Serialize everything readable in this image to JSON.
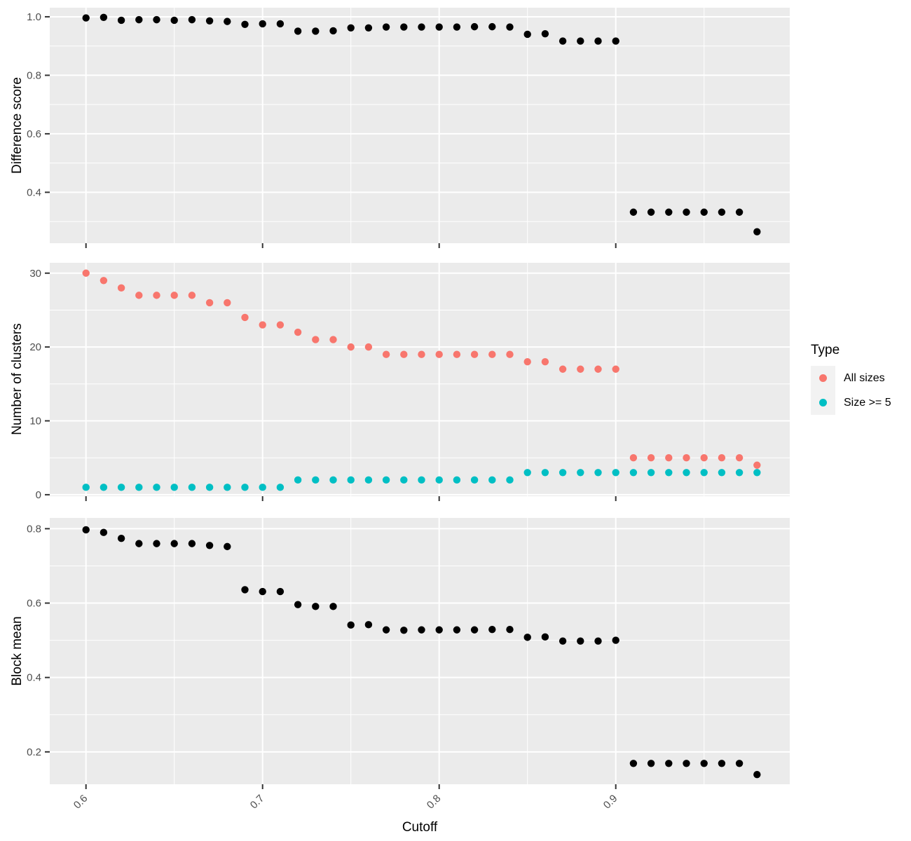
{
  "figure": {
    "xlabel": "Cutoff",
    "x_tick_values": [
      0.6,
      0.7,
      0.8,
      0.9
    ],
    "x_tick_labels": [
      "0.6",
      "0.7",
      "0.8",
      "0.9"
    ]
  },
  "colors": {
    "panel_bg": "#EBEBEB",
    "grid": "#FFFFFF",
    "axis_text": "#4D4D4D",
    "axis_title": "#000000",
    "tick_mark": "#333333",
    "point_black": "#000000",
    "all_sizes": "#F8766D",
    "size_ge_5": "#00BFC4",
    "legend_key_bg": "#F2F2F2"
  },
  "legend": {
    "title": "Type",
    "items": [
      {
        "label": "All sizes",
        "color": "#F8766D"
      },
      {
        "label": "Size >= 5",
        "color": "#00BFC4"
      }
    ]
  },
  "chart_data": [
    {
      "type": "scatter",
      "ylabel": "Difference score",
      "x": [
        0.6,
        0.61,
        0.62,
        0.63,
        0.64,
        0.65,
        0.66,
        0.67,
        0.68,
        0.69,
        0.7,
        0.71,
        0.72,
        0.73,
        0.74,
        0.75,
        0.76,
        0.77,
        0.78,
        0.79,
        0.8,
        0.81,
        0.82,
        0.83,
        0.84,
        0.85,
        0.86,
        0.87,
        0.88,
        0.89,
        0.9,
        0.91,
        0.92,
        0.93,
        0.94,
        0.95,
        0.96,
        0.97,
        0.98
      ],
      "series": [
        {
          "name": "Difference score",
          "color": "#000000",
          "values": [
            0.996,
            0.998,
            0.988,
            0.99,
            0.99,
            0.988,
            0.99,
            0.986,
            0.984,
            0.974,
            0.976,
            0.976,
            0.951,
            0.951,
            0.952,
            0.962,
            0.962,
            0.965,
            0.965,
            0.965,
            0.965,
            0.965,
            0.966,
            0.966,
            0.965,
            0.94,
            0.942,
            0.917,
            0.917,
            0.917,
            0.917,
            0.332,
            0.332,
            0.332,
            0.332,
            0.332,
            0.332,
            0.332,
            0.265
          ]
        }
      ],
      "ylim": [
        0.226,
        1.031
      ],
      "yticks": [
        0.4,
        0.6,
        0.8,
        1.0
      ],
      "ytick_labels": [
        "0.4",
        "0.6",
        "0.8",
        "1.0"
      ],
      "yminor": [
        0.3,
        0.5,
        0.7,
        0.9
      ],
      "grid": true,
      "legend_position": "none"
    },
    {
      "type": "scatter",
      "ylabel": "Number of clusters",
      "x": [
        0.6,
        0.61,
        0.62,
        0.63,
        0.64,
        0.65,
        0.66,
        0.67,
        0.68,
        0.69,
        0.7,
        0.71,
        0.72,
        0.73,
        0.74,
        0.75,
        0.76,
        0.77,
        0.78,
        0.79,
        0.8,
        0.81,
        0.82,
        0.83,
        0.84,
        0.85,
        0.86,
        0.87,
        0.88,
        0.89,
        0.9,
        0.91,
        0.92,
        0.93,
        0.94,
        0.95,
        0.96,
        0.97,
        0.98
      ],
      "series": [
        {
          "name": "All sizes",
          "color": "#F8766D",
          "values": [
            30,
            29,
            28,
            27,
            27,
            27,
            27,
            26,
            26,
            24,
            23,
            23,
            22,
            21,
            21,
            20,
            20,
            19,
            19,
            19,
            19,
            19,
            19,
            19,
            19,
            18,
            18,
            17,
            17,
            17,
            17,
            5,
            5,
            5,
            5,
            5,
            5,
            5,
            4
          ]
        },
        {
          "name": "Size >= 5",
          "color": "#00BFC4",
          "values": [
            1,
            1,
            1,
            1,
            1,
            1,
            1,
            1,
            1,
            1,
            1,
            1,
            2,
            2,
            2,
            2,
            2,
            2,
            2,
            2,
            2,
            2,
            2,
            2,
            2,
            3,
            3,
            3,
            3,
            3,
            3,
            3,
            3,
            3,
            3,
            3,
            3,
            3,
            3
          ]
        }
      ],
      "ylim": [
        -0.2,
        31.4
      ],
      "yticks": [
        0,
        10,
        20,
        30
      ],
      "ytick_labels": [
        "0",
        "10",
        "20",
        "30"
      ],
      "yminor": [
        5,
        15,
        25
      ],
      "grid": true,
      "legend_position": "right"
    },
    {
      "type": "scatter",
      "ylabel": "Block mean",
      "x": [
        0.6,
        0.61,
        0.62,
        0.63,
        0.64,
        0.65,
        0.66,
        0.67,
        0.68,
        0.69,
        0.7,
        0.71,
        0.72,
        0.73,
        0.74,
        0.75,
        0.76,
        0.77,
        0.78,
        0.79,
        0.8,
        0.81,
        0.82,
        0.83,
        0.84,
        0.85,
        0.86,
        0.87,
        0.88,
        0.89,
        0.9,
        0.91,
        0.92,
        0.93,
        0.94,
        0.95,
        0.96,
        0.97,
        0.98
      ],
      "series": [
        {
          "name": "Block mean",
          "color": "#000000",
          "values": [
            0.797,
            0.79,
            0.774,
            0.76,
            0.76,
            0.76,
            0.76,
            0.755,
            0.752,
            0.636,
            0.631,
            0.631,
            0.596,
            0.591,
            0.591,
            0.541,
            0.542,
            0.528,
            0.527,
            0.528,
            0.528,
            0.528,
            0.528,
            0.529,
            0.529,
            0.508,
            0.509,
            0.498,
            0.498,
            0.498,
            0.5,
            0.169,
            0.169,
            0.169,
            0.169,
            0.169,
            0.169,
            0.169,
            0.139
          ]
        }
      ],
      "ylim": [
        0.113,
        0.829
      ],
      "yticks": [
        0.2,
        0.4,
        0.6,
        0.8
      ],
      "ytick_labels": [
        "0.2",
        "0.4",
        "0.6",
        "0.8"
      ],
      "yminor": [
        0.3,
        0.5,
        0.7
      ],
      "grid": true,
      "legend_position": "none"
    }
  ]
}
